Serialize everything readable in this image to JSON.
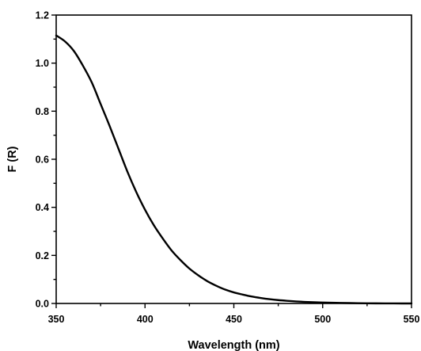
{
  "chart_data": {
    "type": "line",
    "title": "",
    "xlabel": "Wavelength (nm)",
    "ylabel": "F (R)",
    "xlim": [
      350,
      550
    ],
    "ylim": [
      0.0,
      1.2
    ],
    "x_ticks": [
      350,
      400,
      450,
      500,
      550
    ],
    "x_tick_labels": [
      "350",
      "400",
      "450",
      "500",
      "550"
    ],
    "y_ticks": [
      0.0,
      0.2,
      0.4,
      0.6,
      0.8,
      1.0,
      1.2
    ],
    "y_tick_labels": [
      "0.0",
      "0.2",
      "0.4",
      "0.6",
      "0.8",
      "1.0",
      "1.2"
    ],
    "grid": false,
    "legend": "none",
    "line_color": "#000000",
    "series": [
      {
        "x": [
          350,
          355,
          360,
          365,
          370,
          375,
          380,
          385,
          390,
          395,
          400,
          405,
          410,
          415,
          420,
          425,
          430,
          435,
          440,
          445,
          450,
          455,
          460,
          465,
          470,
          475,
          480,
          485,
          490,
          495,
          500,
          505,
          510,
          515,
          520,
          525,
          530,
          535,
          540,
          545,
          550
        ],
        "y": [
          1.115,
          1.09,
          1.05,
          0.99,
          0.92,
          0.83,
          0.74,
          0.645,
          0.55,
          0.465,
          0.39,
          0.325,
          0.27,
          0.22,
          0.18,
          0.145,
          0.117,
          0.093,
          0.074,
          0.058,
          0.046,
          0.037,
          0.029,
          0.023,
          0.018,
          0.014,
          0.011,
          0.0085,
          0.0065,
          0.005,
          0.004,
          0.003,
          0.0022,
          0.0016,
          0.0011,
          0.0007,
          0.0004,
          0.0002,
          0.0001,
          0.0,
          0.0
        ]
      }
    ]
  }
}
